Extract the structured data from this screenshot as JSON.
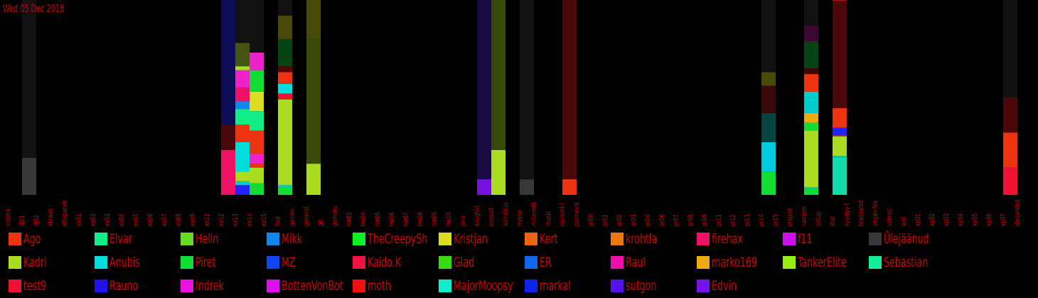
{
  "header": {
    "date": "Wed 05 Dec 2018"
  },
  "chart_data": {
    "type": "bar",
    "stacked": true,
    "title": "",
    "xlabel": "",
    "ylabel": "",
    "ylim": [
      0,
      100
    ],
    "categories": [
      "codera",
      "dj01",
      "dj02",
      "ekraan",
      "ettepanek",
      "ex01",
      "ex02",
      "ex03",
      "ex04",
      "ex05",
      "ex06",
      "ex07",
      "ex08",
      "ex09",
      "ex11",
      "ex12",
      "ex13",
      "ex14",
      "ex15",
      "fnid",
      "games",
      "general",
      "git",
      "gomoku",
      "hw03",
      "hw04",
      "hw05",
      "hw06",
      "hw07",
      "hw08",
      "hw09",
      "hw10",
      "java",
      "kaugtöö",
      "konsult",
      "korraldus",
      "meme",
      "millenniik",
      "music",
      "olulised-l",
      "palmeuni",
      "pr00",
      "pr01",
      "pr02",
      "pr03",
      "pr04",
      "pr06",
      "pr07",
      "pr08",
      "pr09",
      "pr11",
      "pr12",
      "pr13",
      "pr14",
      "pr15",
      "projekt",
      "random",
      "setup",
      "stat",
      "syvajyy-t",
      "teadaanid",
      "vegan-tkk",
      "videod",
      "wat",
      "xp01",
      "xp02",
      "xp03",
      "xp04",
      "xp05",
      "xp06",
      "xp07",
      "ülesanded"
    ],
    "bar_categories": [
      "dj01",
      "ex12",
      "ex13",
      "ex14",
      "fnid",
      "general",
      "kaugtöö",
      "konsult",
      "meme",
      "olulised-l",
      "pr14",
      "random",
      "stat",
      "xp07"
    ],
    "bars": [
      {
        "category": "dj01",
        "segments": [
          {
            "color": "#383838",
            "value": 19
          },
          {
            "color": "#121212",
            "value": 81
          }
        ]
      },
      {
        "category": "ex12",
        "segments": [
          {
            "color": "#ee1166",
            "value": 23
          },
          {
            "color": "#4a0808",
            "value": 13
          },
          {
            "color": "#0d0d55",
            "value": 64
          }
        ]
      },
      {
        "category": "ex13",
        "segments": [
          {
            "color": "#2222ff",
            "value": 5
          },
          {
            "color": "#00cccc",
            "value": 2
          },
          {
            "color": "#aadd22",
            "value": 5
          },
          {
            "color": "#00dddd",
            "value": 15
          },
          {
            "color": "#ee3311",
            "value": 9
          },
          {
            "color": "#11ee88",
            "value": 8
          },
          {
            "color": "#1188ee",
            "value": 4
          },
          {
            "color": "#ee1166",
            "value": 7
          },
          {
            "color": "#ee22cc",
            "value": 9
          },
          {
            "color": "#aadd22",
            "value": 2
          },
          {
            "color": "#445511",
            "value": 12
          },
          {
            "color": "#111111",
            "value": 22
          }
        ]
      },
      {
        "category": "ex14",
        "segments": [
          {
            "color": "#11dd33",
            "value": 6
          },
          {
            "color": "#aadd22",
            "value": 8
          },
          {
            "color": "#ee3311",
            "value": 2
          },
          {
            "color": "#ee22cc",
            "value": 5
          },
          {
            "color": "#ee3311",
            "value": 12
          },
          {
            "color": "#11ee88",
            "value": 10
          },
          {
            "color": "#dddd22",
            "value": 10
          },
          {
            "color": "#11dd33",
            "value": 11
          },
          {
            "color": "#ee22cc",
            "value": 9
          },
          {
            "color": "#111111",
            "value": 27
          }
        ]
      },
      {
        "category": "fnid",
        "segments": [
          {
            "color": "#11dd33",
            "value": 4
          },
          {
            "color": "#00cccc",
            "value": 1
          },
          {
            "color": "#aadd22",
            "value": 44
          },
          {
            "color": "#ee1133",
            "value": 3
          },
          {
            "color": "#00dddd",
            "value": 5
          },
          {
            "color": "#ee3311",
            "value": 6
          },
          {
            "color": "#550505",
            "value": 3
          },
          {
            "color": "#064416",
            "value": 14
          },
          {
            "color": "#4a4a08",
            "value": 12
          },
          {
            "color": "#111111",
            "value": 8
          }
        ]
      },
      {
        "category": "general",
        "segments": [
          {
            "color": "#aadd22",
            "value": 16
          },
          {
            "color": "#3a4a08",
            "value": 64
          },
          {
            "color": "#4a4a08",
            "value": 20
          }
        ]
      },
      {
        "category": "kaugtöö",
        "segments": [
          {
            "color": "#7711dd",
            "value": 8
          },
          {
            "color": "#1a0a44",
            "value": 92
          }
        ]
      },
      {
        "category": "konsult",
        "segments": [
          {
            "color": "#aadd22",
            "value": 23
          },
          {
            "color": "#3a4a08",
            "value": 77
          }
        ]
      },
      {
        "category": "meme",
        "segments": [
          {
            "color": "#383838",
            "value": 8
          },
          {
            "color": "#121212",
            "value": 92
          }
        ]
      },
      {
        "category": "olulised-l",
        "segments": [
          {
            "color": "#ee3311",
            "value": 8
          },
          {
            "color": "#4a0808",
            "value": 92
          }
        ]
      },
      {
        "category": "pr14",
        "segments": [
          {
            "color": "#11dd33",
            "value": 12
          },
          {
            "color": "#00ccdd",
            "value": 15
          },
          {
            "color": "#064444",
            "value": 15
          },
          {
            "color": "#3a0808",
            "value": 14
          },
          {
            "color": "#4a4a08",
            "value": 7
          },
          {
            "color": "#111111",
            "value": 37
          }
        ]
      },
      {
        "category": "random",
        "segments": [
          {
            "color": "#11dd33",
            "value": 3
          },
          {
            "color": "#00cccc",
            "value": 1
          },
          {
            "color": "#aadd22",
            "value": 29
          },
          {
            "color": "#11dd33",
            "value": 4
          },
          {
            "color": "#eeaa11",
            "value": 5
          },
          {
            "color": "#00cccc",
            "value": 11
          },
          {
            "color": "#ee3311",
            "value": 9
          },
          {
            "color": "#3a0808",
            "value": 3
          },
          {
            "color": "#064416",
            "value": 13
          },
          {
            "color": "#2a2a2a",
            "value": 1
          },
          {
            "color": "#3a0830",
            "value": 8
          },
          {
            "color": "#111111",
            "value": 13
          }
        ]
      },
      {
        "category": "stat",
        "segments": [
          {
            "color": "#11ddaa",
            "value": 19
          },
          {
            "color": "#00cccc",
            "value": 1
          },
          {
            "color": "#aadd22",
            "value": 10
          },
          {
            "color": "#ee3311",
            "value": 0.5
          },
          {
            "color": "#2222ff",
            "value": 4
          },
          {
            "color": "#ee3311",
            "value": 10
          },
          {
            "color": "#4a0808",
            "value": 55
          },
          {
            "color": "#aa1111",
            "value": 0.5
          }
        ]
      },
      {
        "category": "xp07",
        "segments": [
          {
            "color": "#ee1133",
            "value": 14
          },
          {
            "color": "#ee3311",
            "value": 18
          },
          {
            "color": "#4a0808",
            "value": 18
          },
          {
            "color": "#111111",
            "value": 50
          }
        ]
      }
    ],
    "legend": [
      {
        "name": "Ago",
        "color": "#ee3311"
      },
      {
        "name": "Elvar",
        "color": "#11ee88"
      },
      {
        "name": "Helin",
        "color": "#66dd22"
      },
      {
        "name": "Mikk",
        "color": "#1188ee"
      },
      {
        "name": "TheCreepySh",
        "color": "#11ee22"
      },
      {
        "name": "Kristjan",
        "color": "#dddd22"
      },
      {
        "name": "Kert",
        "color": "#ee6611"
      },
      {
        "name": "krohtla",
        "color": "#ee7711"
      },
      {
        "name": "firehax",
        "color": "#ee1166"
      },
      {
        "name": "f11",
        "color": "#cc11ee"
      },
      {
        "name": "Ülejäänud",
        "color": "#383838"
      },
      {
        "name": "Kadri",
        "color": "#aadd22"
      },
      {
        "name": "Anubis",
        "color": "#00dddd"
      },
      {
        "name": "Piret",
        "color": "#11dd33"
      },
      {
        "name": "MZ",
        "color": "#1144ee"
      },
      {
        "name": "Kaido.K",
        "color": "#ee1144"
      },
      {
        "name": "Glad",
        "color": "#33dd11"
      },
      {
        "name": "ER",
        "color": "#1166ee"
      },
      {
        "name": "Raul",
        "color": "#ee11aa"
      },
      {
        "name": "marko169",
        "color": "#eeaa11"
      },
      {
        "name": "TankerElite",
        "color": "#99ee11"
      },
      {
        "name": "Sebastian",
        "color": "#11ee99"
      },
      {
        "name": "test9",
        "color": "#ee1133"
      },
      {
        "name": "Rauno",
        "color": "#2211ee"
      },
      {
        "name": "Indrek",
        "color": "#ee11dd"
      },
      {
        "name": "BottenVonBot",
        "color": "#dd11ee"
      },
      {
        "name": "moth",
        "color": "#ee1111"
      },
      {
        "name": "MajorMoopsy",
        "color": "#11eecc"
      },
      {
        "name": "markal",
        "color": "#1122ee"
      },
      {
        "name": "sutgon",
        "color": "#5511ee"
      },
      {
        "name": "Edvin",
        "color": "#7711ee"
      }
    ]
  }
}
